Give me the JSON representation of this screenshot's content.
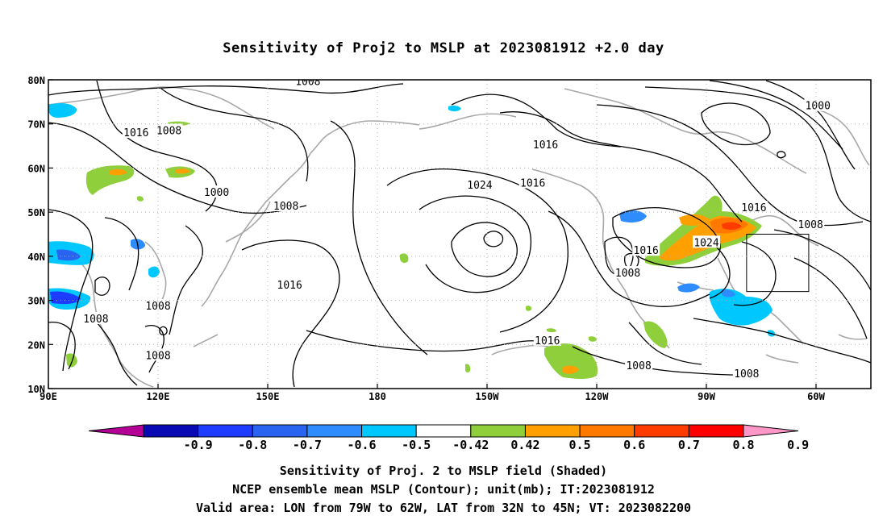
{
  "title": "Sensitivity of Proj2 to MSLP at 2023081912 +2.0 day",
  "map": {
    "lon_labels": [
      "90E",
      "120E",
      "150E",
      "180",
      "150W",
      "120W",
      "90W",
      "60W"
    ],
    "lat_labels": [
      "80N",
      "70N",
      "60N",
      "50N",
      "40N",
      "30N",
      "20N",
      "10N"
    ],
    "lon_range": [
      90,
      315
    ],
    "lat_range": [
      10,
      80
    ],
    "gridlines": "dotted",
    "contour_labels": [
      {
        "text": "1008",
        "lon": 161,
        "lat": 79.7
      },
      {
        "text": "1000",
        "lon": 300.5,
        "lat": 74.2
      },
      {
        "text": "1016",
        "lon": 114,
        "lat": 68.1
      },
      {
        "text": "1008",
        "lon": 123,
        "lat": 68.6
      },
      {
        "text": "1016",
        "lon": 226,
        "lat": 65.4
      },
      {
        "text": "1024",
        "lon": 208,
        "lat": 56.2
      },
      {
        "text": "1016",
        "lon": 222.5,
        "lat": 56.7
      },
      {
        "text": "1000",
        "lon": 136,
        "lat": 54.6
      },
      {
        "text": "1008",
        "lon": 155,
        "lat": 51.5
      },
      {
        "text": "1016",
        "lon": 283,
        "lat": 51.1
      },
      {
        "text": "1008",
        "lon": 298.5,
        "lat": 47.3
      },
      {
        "text": "1024",
        "lon": 270,
        "lat": 43.2
      },
      {
        "text": "1016",
        "lon": 253.5,
        "lat": 41.4
      },
      {
        "text": "1008",
        "lon": 248.5,
        "lat": 36.3
      },
      {
        "text": "1016",
        "lon": 156,
        "lat": 33.6
      },
      {
        "text": "1008",
        "lon": 120,
        "lat": 28.8
      },
      {
        "text": "1008",
        "lon": 103,
        "lat": 25.9
      },
      {
        "text": "1016",
        "lon": 226.5,
        "lat": 21.0
      },
      {
        "text": "1008",
        "lon": 120,
        "lat": 17.6
      },
      {
        "text": "1008",
        "lon": 251.5,
        "lat": 15.3
      },
      {
        "text": "1008",
        "lon": 281,
        "lat": 13.5
      }
    ],
    "valid_area": {
      "lon": [
        281,
        298
      ],
      "lat": [
        32,
        45
      ]
    }
  },
  "colorbar": {
    "labels": [
      "-0.9",
      "-0.8",
      "-0.7",
      "-0.6",
      "-0.5",
      "-0.42",
      "0.42",
      "0.5",
      "0.6",
      "0.7",
      "0.8",
      "0.9"
    ],
    "colors": [
      "#b40096",
      "#0a0ab4",
      "#1e3cff",
      "#2864f0",
      "#2f8cff",
      "#00c8ff",
      "#ffffff",
      "#8fcf3c",
      "#ffa000",
      "#ff7800",
      "#ff3c00",
      "#ff0000",
      "#ff96c8"
    ]
  },
  "captions": [
    "Sensitivity of Proj. 2 to MSLP field (Shaded)",
    "NCEP ensemble mean MSLP (Contour); unit(mb); IT:2023081912",
    "Valid area: LON from 79W to 62W, LAT from 32N to 45N; VT: 2023082200"
  ]
}
